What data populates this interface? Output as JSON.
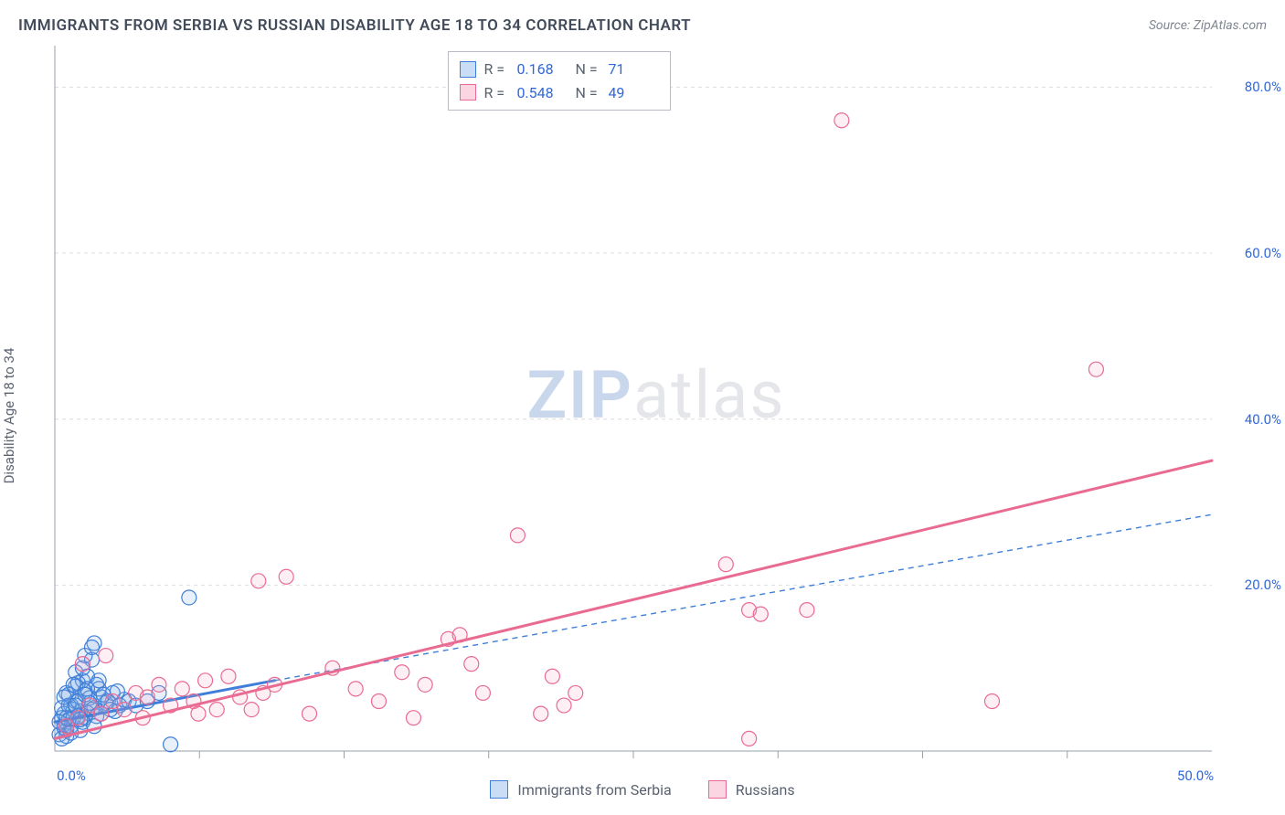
{
  "header": {
    "title": "IMMIGRANTS FROM SERBIA VS RUSSIAN DISABILITY AGE 18 TO 34 CORRELATION CHART",
    "source": "Source: ZipAtlas.com"
  },
  "ylabel": "Disability Age 18 to 34",
  "watermark": {
    "zip": "ZIP",
    "atlas": "atlas"
  },
  "chart": {
    "type": "scatter",
    "background_color": "#ffffff",
    "grid_color": "#d9dde2",
    "grid_dash": "4,4",
    "axis_color": "#9aa0a8",
    "axis_width": 1,
    "xlim": [
      0,
      50
    ],
    "ylim": [
      0,
      85
    ],
    "xticks": [
      0,
      50
    ],
    "xgrid_minor": [
      6.25,
      12.5,
      18.75,
      25,
      31.25,
      37.5,
      43.75
    ],
    "yticks": [
      20,
      40,
      60,
      80
    ],
    "tick_color": "#3168d8",
    "tick_fontsize": 15,
    "xtick_labels": [
      "0.0%",
      "50.0%"
    ],
    "ytick_labels": [
      "20.0%",
      "40.0%",
      "60.0%",
      "80.0%"
    ],
    "marker_radius": 8,
    "marker_stroke_width": 1.2,
    "marker_fill_opacity": 0.18,
    "series": [
      {
        "name": "Immigrants from Serbia",
        "color_stroke": "#3f7fd9",
        "color_fill": "#7eaae6",
        "r_value": "0.168",
        "n_value": "71",
        "points": [
          [
            0.3,
            4.0
          ],
          [
            0.5,
            2.5
          ],
          [
            0.4,
            3.2
          ],
          [
            0.7,
            5.5
          ],
          [
            0.9,
            6.0
          ],
          [
            1.1,
            4.8
          ],
          [
            1.3,
            7.2
          ],
          [
            0.6,
            3.8
          ],
          [
            0.8,
            5.0
          ],
          [
            1.0,
            4.2
          ],
          [
            1.2,
            8.5
          ],
          [
            1.5,
            6.4
          ],
          [
            1.7,
            5.2
          ],
          [
            0.2,
            2.0
          ],
          [
            0.4,
            4.5
          ],
          [
            0.9,
            7.8
          ],
          [
            1.4,
            9.0
          ],
          [
            1.6,
            11.0
          ],
          [
            2.0,
            6.5
          ],
          [
            2.2,
            5.8
          ],
          [
            2.5,
            7.0
          ],
          [
            0.5,
            1.8
          ],
          [
            0.7,
            3.0
          ],
          [
            1.1,
            2.5
          ],
          [
            1.3,
            4.0
          ],
          [
            1.8,
            8.0
          ],
          [
            2.3,
            6.0
          ],
          [
            2.8,
            5.5
          ],
          [
            0.3,
            5.2
          ],
          [
            0.6,
            6.8
          ],
          [
            1.0,
            8.2
          ],
          [
            1.4,
            4.6
          ],
          [
            1.9,
            7.5
          ],
          [
            2.6,
            4.8
          ],
          [
            3.0,
            6.2
          ],
          [
            0.4,
            2.8
          ],
          [
            0.8,
            4.0
          ],
          [
            1.2,
            3.5
          ],
          [
            1.6,
            5.0
          ],
          [
            2.1,
            6.8
          ],
          [
            0.5,
            7.0
          ],
          [
            0.9,
            9.5
          ],
          [
            1.3,
            11.5
          ],
          [
            1.7,
            13.0
          ],
          [
            0.2,
            3.5
          ],
          [
            0.6,
            5.5
          ],
          [
            1.0,
            6.0
          ],
          [
            1.4,
            7.5
          ],
          [
            1.8,
            4.2
          ],
          [
            2.4,
            5.0
          ],
          [
            3.2,
            6.0
          ],
          [
            0.3,
            1.5
          ],
          [
            0.7,
            2.2
          ],
          [
            1.1,
            3.8
          ],
          [
            1.5,
            5.8
          ],
          [
            1.9,
            8.5
          ],
          [
            2.7,
            7.2
          ],
          [
            3.5,
            5.5
          ],
          [
            4.0,
            6.0
          ],
          [
            4.5,
            7.0
          ],
          [
            0.4,
            6.5
          ],
          [
            0.8,
            8.0
          ],
          [
            1.2,
            10.0
          ],
          [
            1.6,
            12.5
          ],
          [
            2.0,
            4.5
          ],
          [
            5.0,
            0.8
          ],
          [
            5.8,
            18.5
          ],
          [
            0.5,
            4.0
          ],
          [
            0.9,
            5.5
          ],
          [
            1.3,
            6.8
          ],
          [
            1.7,
            3.0
          ]
        ],
        "trend_solid": {
          "x1": 0,
          "y1": 3.5,
          "x2": 9.5,
          "y2": 8.5,
          "width": 3
        },
        "trend_dash": {
          "x1": 9.5,
          "y1": 8.5,
          "x2": 50,
          "y2": 28.5,
          "width": 1.4,
          "dash": "6,5"
        }
      },
      {
        "name": "Russians",
        "color_stroke": "#e96b92",
        "color_fill": "#f4a9c0",
        "r_value": "0.548",
        "n_value": "49",
        "points": [
          [
            0.5,
            3.0
          ],
          [
            1.0,
            4.0
          ],
          [
            1.5,
            5.5
          ],
          [
            2.0,
            4.5
          ],
          [
            2.5,
            6.0
          ],
          [
            3.0,
            5.0
          ],
          [
            3.5,
            7.0
          ],
          [
            4.0,
            6.5
          ],
          [
            4.5,
            8.0
          ],
          [
            5.0,
            5.5
          ],
          [
            5.5,
            7.5
          ],
          [
            6.0,
            6.0
          ],
          [
            6.5,
            8.5
          ],
          [
            7.0,
            5.0
          ],
          [
            7.5,
            9.0
          ],
          [
            8.0,
            6.5
          ],
          [
            8.5,
            5.0
          ],
          [
            9.0,
            7.0
          ],
          [
            9.5,
            8.0
          ],
          [
            10.0,
            21.0
          ],
          [
            11.0,
            4.5
          ],
          [
            12.0,
            10.0
          ],
          [
            13.0,
            7.5
          ],
          [
            14.0,
            6.0
          ],
          [
            15.0,
            9.5
          ],
          [
            15.5,
            4.0
          ],
          [
            16.0,
            8.0
          ],
          [
            17.0,
            13.5
          ],
          [
            17.5,
            14.0
          ],
          [
            18.0,
            10.5
          ],
          [
            18.5,
            7.0
          ],
          [
            20.0,
            26.0
          ],
          [
            21.0,
            4.5
          ],
          [
            21.5,
            9.0
          ],
          [
            22.0,
            5.5
          ],
          [
            22.5,
            7.0
          ],
          [
            29.0,
            22.5
          ],
          [
            30.0,
            1.5
          ],
          [
            30.0,
            17.0
          ],
          [
            30.5,
            16.5
          ],
          [
            32.5,
            17.0
          ],
          [
            34.0,
            76.0
          ],
          [
            40.5,
            6.0
          ],
          [
            45.0,
            46.0
          ],
          [
            1.2,
            10.5
          ],
          [
            2.2,
            11.5
          ],
          [
            3.8,
            4.0
          ],
          [
            6.2,
            4.5
          ],
          [
            8.8,
            20.5
          ]
        ],
        "trend_solid": {
          "x1": 0,
          "y1": 1.5,
          "x2": 50,
          "y2": 35.0,
          "width": 3
        }
      }
    ]
  },
  "stats_box": {
    "rows": [
      {
        "swatch_fill": "#c9ddf5",
        "swatch_stroke": "#3f7fd9",
        "r": "0.168",
        "n": "71"
      },
      {
        "swatch_fill": "#fbd6e2",
        "swatch_stroke": "#e96b92",
        "r": "0.548",
        "n": "49"
      }
    ],
    "label_r": "R  =",
    "label_n": "N  ="
  },
  "bottom_legend": [
    {
      "swatch_fill": "#c9ddf5",
      "swatch_stroke": "#3f7fd9",
      "label": "Immigrants from Serbia"
    },
    {
      "swatch_fill": "#fbd6e2",
      "swatch_stroke": "#e96b92",
      "label": "Russians"
    }
  ]
}
